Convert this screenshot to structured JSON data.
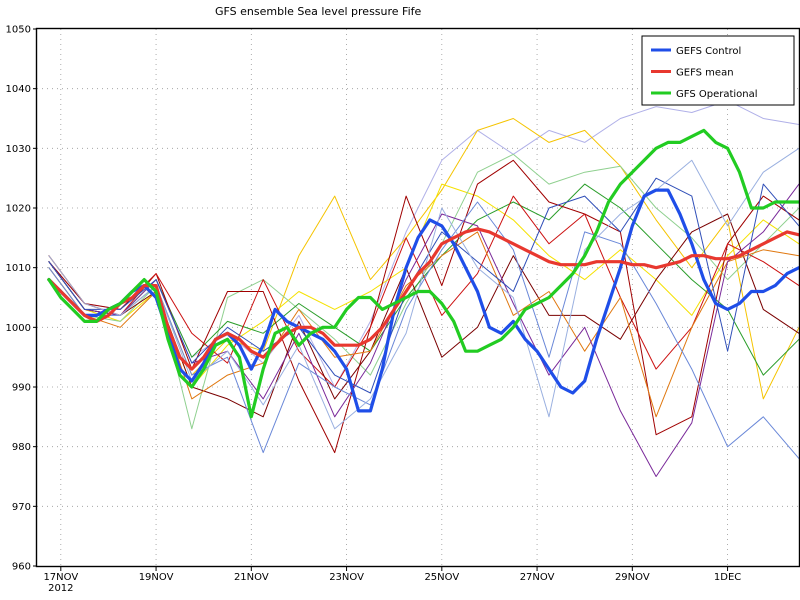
{
  "chart_data": {
    "type": "line",
    "title": "GFS  ensemble Sea level pressure Fife",
    "ylim": [
      960,
      1050
    ],
    "yticks": [
      960,
      970,
      980,
      990,
      1000,
      1010,
      1020,
      1030,
      1040,
      1050
    ],
    "xlim": [
      16.5,
      32.5
    ],
    "xticks": [
      {
        "x": 17,
        "label": "17NOV",
        "sub": "2012"
      },
      {
        "x": 19,
        "label": "19NOV"
      },
      {
        "x": 21,
        "label": "21NOV"
      },
      {
        "x": 23,
        "label": "23NOV"
      },
      {
        "x": 25,
        "label": "25NOV"
      },
      {
        "x": 27,
        "label": "27NOV"
      },
      {
        "x": 29,
        "label": "29NOV"
      },
      {
        "x": 31,
        "label": "1DEC"
      }
    ],
    "grid": true,
    "legend_position": "top-right",
    "series": [
      {
        "name": "GEFS Control",
        "color": "#1f4ee8",
        "width": 3.2,
        "x": [
          16.75,
          17.0,
          17.25,
          17.5,
          17.75,
          18.0,
          18.25,
          18.5,
          18.75,
          19.0,
          19.25,
          19.5,
          19.75,
          20.0,
          20.25,
          20.5,
          20.75,
          21.0,
          21.25,
          21.5,
          21.75,
          22.0,
          22.25,
          22.5,
          22.75,
          23.0,
          23.25,
          23.5,
          23.75,
          24.0,
          24.25,
          24.5,
          24.75,
          25.0,
          25.25,
          25.5,
          25.75,
          26.0,
          26.25,
          26.5,
          26.75,
          27.0,
          27.25,
          27.5,
          27.75,
          28.0,
          28.25,
          28.5,
          28.75,
          29.0,
          29.25,
          29.5,
          29.75,
          30.0,
          30.25,
          30.5,
          30.75,
          31.0,
          31.25,
          31.5,
          31.75,
          32.0,
          32.25,
          32.5
        ],
        "y": [
          1008,
          1006,
          1004,
          1002,
          1002,
          1003,
          1004,
          1006,
          1007,
          1005,
          999,
          993,
          991,
          994,
          998,
          999,
          997,
          993,
          997,
          1003,
          1001,
          1000,
          999,
          998,
          996,
          993,
          986,
          986,
          993,
          1003,
          1010,
          1015,
          1018,
          1017,
          1014,
          1010,
          1006,
          1000,
          999,
          1001,
          998,
          996,
          993,
          990,
          989,
          991,
          998,
          1004,
          1010,
          1017,
          1022,
          1023,
          1023,
          1019,
          1014,
          1008,
          1004,
          1003,
          1004,
          1006,
          1006,
          1007,
          1009,
          1010
        ]
      },
      {
        "name": "GEFS mean",
        "color": "#e8382f",
        "width": 3.2,
        "x": [
          16.75,
          17.0,
          17.25,
          17.5,
          17.75,
          18.0,
          18.25,
          18.5,
          18.75,
          19.0,
          19.25,
          19.5,
          19.75,
          20.0,
          20.25,
          20.5,
          20.75,
          21.0,
          21.25,
          21.5,
          21.75,
          22.0,
          22.25,
          22.5,
          22.75,
          23.0,
          23.25,
          23.5,
          23.75,
          24.0,
          24.25,
          24.5,
          24.75,
          25.0,
          25.25,
          25.5,
          25.75,
          26.0,
          26.25,
          26.5,
          26.75,
          27.0,
          27.25,
          27.5,
          27.75,
          28.0,
          28.25,
          28.5,
          28.75,
          29.0,
          29.25,
          29.5,
          29.75,
          30.0,
          30.25,
          30.5,
          30.75,
          31.0,
          31.25,
          31.5,
          31.75,
          32.0,
          32.25,
          32.5
        ],
        "y": [
          1008,
          1006,
          1004,
          1002,
          1001,
          1002,
          1004,
          1005,
          1007,
          1007,
          1000,
          995,
          993,
          995,
          998,
          999,
          998,
          996,
          995,
          997,
          999,
          1000,
          1000,
          999,
          997,
          997,
          997,
          998,
          1000,
          1003,
          1006,
          1009,
          1011,
          1014,
          1015,
          1016,
          1016.5,
          1016,
          1015,
          1014,
          1013,
          1012,
          1011,
          1010.5,
          1010.5,
          1010.5,
          1011,
          1011,
          1011,
          1010.5,
          1010.5,
          1010,
          1010.5,
          1011,
          1012,
          1012,
          1011.5,
          1011.5,
          1012,
          1013,
          1014,
          1015,
          1016,
          1015.5
        ]
      },
      {
        "name": "GFS Operational",
        "color": "#22cc22",
        "width": 3.2,
        "x": [
          16.75,
          17.0,
          17.25,
          17.5,
          17.75,
          18.0,
          18.25,
          18.5,
          18.75,
          19.0,
          19.25,
          19.5,
          19.75,
          20.0,
          20.25,
          20.5,
          20.75,
          21.0,
          21.25,
          21.5,
          21.75,
          22.0,
          22.25,
          22.5,
          22.75,
          23.0,
          23.25,
          23.5,
          23.75,
          24.0,
          24.25,
          24.5,
          24.75,
          25.0,
          25.25,
          25.5,
          25.75,
          26.0,
          26.25,
          26.5,
          26.75,
          27.0,
          27.25,
          27.5,
          27.75,
          28.0,
          28.25,
          28.5,
          28.75,
          29.0,
          29.25,
          29.5,
          29.75,
          30.0,
          30.25,
          30.5,
          30.75,
          31.0,
          31.25,
          31.5,
          31.75,
          32.0,
          32.25,
          32.5
        ],
        "y": [
          1008,
          1005,
          1003,
          1001,
          1001,
          1003,
          1004,
          1006,
          1008,
          1006,
          998,
          992,
          990,
          993,
          997,
          998,
          995,
          985,
          993,
          999,
          1000,
          997,
          999,
          1000,
          1000,
          1003,
          1005,
          1005,
          1003,
          1004,
          1005,
          1006,
          1006,
          1004,
          1001,
          996,
          996,
          997,
          998,
          1000,
          1003,
          1004,
          1005,
          1007,
          1009,
          1012,
          1016,
          1021,
          1024,
          1026,
          1028,
          1030,
          1031,
          1031,
          1032,
          1033,
          1031,
          1030,
          1026,
          1020,
          1020,
          1021,
          1021,
          1021
        ]
      },
      {
        "name": "",
        "color": "#b0b0e8",
        "width": 1,
        "x": [
          16.75,
          17.5,
          18.25,
          19.0,
          19.75,
          20.5,
          21.25,
          22.0,
          22.75,
          23.5,
          24.25,
          25.0,
          25.75,
          26.5,
          27.25,
          28.0,
          28.75,
          29.5,
          30.25,
          31.0,
          31.75,
          32.5
        ],
        "y": [
          1011,
          1004,
          1003,
          1008,
          995,
          999,
          994,
          1002,
          990,
          1001,
          1016,
          1028,
          1033,
          1029,
          1033,
          1031,
          1035,
          1037,
          1036,
          1038,
          1035,
          1034
        ]
      },
      {
        "name": "",
        "color": "#f5c400",
        "width": 1,
        "x": [
          16.75,
          17.5,
          18.25,
          19.0,
          19.75,
          20.5,
          21.25,
          22.0,
          22.75,
          23.5,
          24.25,
          25.0,
          25.75,
          26.5,
          27.25,
          28.0,
          28.75,
          29.5,
          30.25,
          31.0,
          31.75,
          32.5
        ],
        "y": [
          1012,
          1004,
          1002,
          1007,
          992,
          998,
          996,
          1012,
          1022,
          1008,
          1015,
          1023,
          1033,
          1035,
          1031,
          1033,
          1027,
          1018,
          1010,
          1018,
          988,
          1000
        ]
      },
      {
        "name": "",
        "color": "#f5e100",
        "width": 1,
        "x": [
          16.75,
          17.5,
          18.25,
          19.0,
          19.75,
          20.5,
          21.25,
          22.0,
          22.75,
          23.5,
          24.25,
          25.0,
          25.75,
          26.5,
          27.25,
          28.0,
          28.75,
          29.5,
          30.25,
          31.0,
          31.75,
          32.5
        ],
        "y": [
          1011,
          1003,
          1001,
          1006,
          990,
          997,
          1001,
          1006,
          1003,
          1006,
          1010,
          1024,
          1022,
          1018,
          1012,
          1008,
          1013,
          1008,
          1002,
          1012,
          1018,
          1014
        ]
      },
      {
        "name": "",
        "color": "#8fd08f",
        "width": 1,
        "x": [
          16.75,
          17.5,
          18.25,
          19.0,
          19.75,
          20.5,
          21.25,
          22.0,
          22.75,
          23.5,
          24.25,
          25.0,
          25.75,
          26.5,
          27.25,
          28.0,
          28.75,
          29.5,
          30.25,
          31.0,
          31.75,
          32.5
        ],
        "y": [
          1010,
          1002,
          1001,
          1007,
          983,
          1005,
          1008,
          1003,
          998,
          992,
          1004,
          1014,
          1026,
          1029,
          1024,
          1026,
          1027,
          1020,
          1015,
          1008,
          1014,
          1020
        ]
      },
      {
        "name": "",
        "color": "#2a9d2a",
        "width": 1,
        "x": [
          16.75,
          17.5,
          18.25,
          19.0,
          19.75,
          20.5,
          21.25,
          22.0,
          22.75,
          23.5,
          24.25,
          25.0,
          25.75,
          26.5,
          27.25,
          28.0,
          28.75,
          29.5,
          30.25,
          31.0,
          31.75,
          32.5
        ],
        "y": [
          1011,
          1003,
          1002,
          1008,
          995,
          1001,
          999,
          1004,
          1000,
          996,
          1005,
          1012,
          1018,
          1021,
          1018,
          1024,
          1020,
          1014,
          1008,
          1003,
          992,
          998
        ]
      },
      {
        "name": "",
        "color": "#a00000",
        "width": 1,
        "x": [
          16.75,
          17.5,
          18.25,
          19.0,
          19.75,
          20.5,
          21.25,
          22.0,
          22.75,
          23.5,
          24.25,
          25.0,
          25.75,
          26.5,
          27.25,
          28.0,
          28.75,
          29.5,
          30.25,
          31.0,
          31.75,
          32.5
        ],
        "y": [
          1011,
          1004,
          1003,
          1009,
          993,
          1006,
          1006,
          991,
          979,
          1000,
          1022,
          1007,
          1024,
          1028,
          1021,
          1019,
          1016,
          982,
          985,
          1014,
          1022,
          1018
        ]
      },
      {
        "name": "",
        "color": "#cc1111",
        "width": 1,
        "x": [
          16.75,
          17.5,
          18.25,
          19.0,
          19.75,
          20.5,
          21.25,
          22.0,
          22.75,
          23.5,
          24.25,
          25.0,
          25.75,
          26.5,
          27.25,
          28.0,
          28.75,
          29.5,
          30.25,
          31.0,
          31.75,
          32.5
        ],
        "y": [
          1012,
          1004,
          1002,
          1009,
          999,
          994,
          1008,
          996,
          990,
          1000,
          1015,
          1002,
          1009,
          1022,
          1014,
          1019,
          1005,
          993,
          1000,
          1014,
          1011,
          1007
        ]
      },
      {
        "name": "",
        "color": "#7a0000",
        "width": 1,
        "x": [
          16.75,
          17.5,
          18.25,
          19.0,
          19.75,
          20.5,
          21.25,
          22.0,
          22.75,
          23.5,
          24.25,
          25.0,
          25.75,
          26.5,
          27.25,
          28.0,
          28.75,
          29.5,
          30.25,
          31.0,
          31.75,
          32.5
        ],
        "y": [
          1011,
          1003,
          1002,
          1006,
          990,
          988,
          985,
          1001,
          988,
          996,
          1010,
          995,
          1000,
          1012,
          1002,
          1002,
          998,
          1008,
          1016,
          1019,
          1003,
          999
        ]
      },
      {
        "name": "",
        "color": "#e07810",
        "width": 1,
        "x": [
          16.75,
          17.5,
          18.25,
          19.0,
          19.75,
          20.5,
          21.25,
          22.0,
          22.75,
          23.5,
          24.25,
          25.0,
          25.75,
          26.5,
          27.25,
          28.0,
          28.75,
          29.5,
          30.25,
          31.0,
          31.75,
          32.5
        ],
        "y": [
          1010,
          1002,
          1000,
          1006,
          988,
          992,
          994,
          1003,
          995,
          996,
          1007,
          1012,
          1016,
          1002,
          1006,
          996,
          1005,
          985,
          1000,
          1011,
          1013,
          1012
        ]
      },
      {
        "name": "",
        "color": "#7a2a9a",
        "width": 1,
        "x": [
          16.75,
          17.5,
          18.25,
          19.0,
          19.75,
          20.5,
          21.25,
          22.0,
          22.75,
          23.5,
          24.25,
          25.0,
          25.75,
          26.5,
          27.25,
          28.0,
          28.75,
          29.5,
          30.25,
          31.0,
          31.75,
          32.5
        ],
        "y": [
          1011,
          1003,
          1002,
          1008,
          994,
          996,
          988,
          999,
          985,
          994,
          1008,
          1019,
          1017,
          1004,
          992,
          1000,
          986,
          975,
          984,
          1011,
          1016,
          1024
        ]
      },
      {
        "name": "",
        "color": "#6a88d8",
        "width": 1,
        "x": [
          16.75,
          17.5,
          18.25,
          19.0,
          19.75,
          20.5,
          21.25,
          22.0,
          22.75,
          23.5,
          24.25,
          25.0,
          25.75,
          26.5,
          27.25,
          28.0,
          28.75,
          29.5,
          30.25,
          31.0,
          31.75,
          32.5
        ],
        "y": [
          1010,
          1002,
          1002,
          1007,
          992,
          995,
          979,
          994,
          990,
          987,
          1003,
          1013,
          1021,
          1013,
          995,
          1016,
          1014,
          1004,
          993,
          980,
          985,
          978
        ]
      },
      {
        "name": "",
        "color": "#304fb8",
        "width": 1,
        "x": [
          16.75,
          17.5,
          18.25,
          19.0,
          19.75,
          20.5,
          21.25,
          22.0,
          22.75,
          23.5,
          24.25,
          25.0,
          25.75,
          26.5,
          27.25,
          28.0,
          28.75,
          29.5,
          30.25,
          31.0,
          31.75,
          32.5
        ],
        "y": [
          1011,
          1003,
          1003,
          1008,
          994,
          1000,
          996,
          1000,
          992,
          989,
          1006,
          1016,
          1011,
          1006,
          1020,
          1022,
          1016,
          1025,
          1022,
          996,
          1024,
          1017
        ]
      },
      {
        "name": "",
        "color": "#9ab0e0",
        "width": 1,
        "x": [
          16.75,
          17.5,
          18.25,
          19.0,
          19.75,
          20.5,
          21.25,
          22.0,
          22.75,
          23.5,
          24.25,
          25.0,
          25.75,
          26.5,
          27.25,
          28.0,
          28.75,
          29.5,
          30.25,
          31.0,
          31.75,
          32.5
        ],
        "y": [
          1012,
          1004,
          1002,
          1007,
          991,
          996,
          987,
          997,
          983,
          988,
          999,
          1020,
          1010,
          1005,
          985,
          1013,
          1019,
          1023,
          1028,
          1017,
          1026,
          1030
        ]
      }
    ]
  }
}
